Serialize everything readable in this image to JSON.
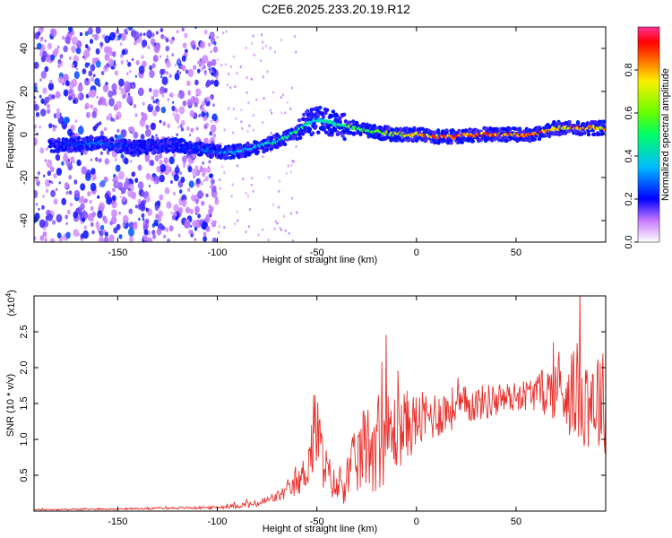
{
  "title": "C2E6.2025.233.20.19.R12",
  "chart_data": [
    {
      "type": "heatmap",
      "name": "spectrogram",
      "xlabel": "Height of straight line (km)",
      "ylabel": "Frequency (Hz)",
      "xlim": [
        -192,
        95
      ],
      "ylim": [
        -50,
        50
      ],
      "xticks": [
        {
          "value": -150,
          "label": "-150"
        },
        {
          "value": -100,
          "label": "-100"
        },
        {
          "value": -50,
          "label": "-50"
        },
        {
          "value": 0,
          "label": "0"
        },
        {
          "value": 50,
          "label": "50"
        }
      ],
      "yticks": [
        {
          "value": 40,
          "label": "40"
        },
        {
          "value": 20,
          "label": "20"
        },
        {
          "value": 0,
          "label": "0"
        },
        {
          "value": -20,
          "label": "-20"
        },
        {
          "value": -40,
          "label": "-40"
        }
      ],
      "ridge": {
        "x": [
          -180,
          -160,
          -140,
          -120,
          -100,
          -90,
          -80,
          -70,
          -60,
          -55,
          -50,
          -45,
          -40,
          -30,
          -20,
          -10,
          0,
          10,
          20,
          30,
          40,
          50,
          60,
          70,
          80,
          95
        ],
        "frequency": [
          -5,
          -4,
          -6,
          -5,
          -8,
          -8,
          -6,
          -3,
          1,
          5,
          7,
          6,
          4,
          3,
          1,
          0,
          0,
          -1,
          -1,
          0,
          0,
          0,
          0,
          3,
          3,
          3
        ],
        "amplitude": [
          0.2,
          0.3,
          0.2,
          0.2,
          0.3,
          0.35,
          0.4,
          0.45,
          0.5,
          0.45,
          0.4,
          0.45,
          0.5,
          0.55,
          0.6,
          0.7,
          0.8,
          0.85,
          0.85,
          0.85,
          0.9,
          0.9,
          0.9,
          0.8,
          0.85,
          0.8
        ]
      },
      "noise_region_x": [
        -192,
        -100
      ],
      "colorbar": {
        "label": "Normalized spectral amplitude",
        "range": [
          0,
          1
        ],
        "ticks": [
          {
            "value": 0.0,
            "label": "0.0"
          },
          {
            "value": 0.2,
            "label": "0.2"
          },
          {
            "value": 0.4,
            "label": "0.4"
          },
          {
            "value": 0.6,
            "label": "0.6"
          },
          {
            "value": 0.8,
            "label": "0.8"
          }
        ]
      }
    },
    {
      "type": "line",
      "name": "snr",
      "xlabel": "Height of straight line (km)",
      "ylabel": "SNR (10 * v/v)",
      "y_multiplier": "(x10",
      "y_multiplier_exp": "4",
      "y_multiplier_close": ")",
      "xlim": [
        -192,
        95
      ],
      "ylim": [
        0,
        3.0
      ],
      "color": "#e8322e",
      "xticks": [
        {
          "value": -150,
          "label": "-150"
        },
        {
          "value": -100,
          "label": "-100"
        },
        {
          "value": -50,
          "label": "-50"
        },
        {
          "value": 0,
          "label": "0"
        },
        {
          "value": 50,
          "label": "50"
        }
      ],
      "yticks": [
        {
          "value": 0.5,
          "label": "0.5"
        },
        {
          "value": 1.0,
          "label": "1.0"
        },
        {
          "value": 1.5,
          "label": "1.5"
        },
        {
          "value": 2.0,
          "label": "2.0"
        },
        {
          "value": 2.5,
          "label": "2.5"
        }
      ],
      "series": [
        {
          "name": "SNR",
          "x": [
            -192,
            -150,
            -100,
            -80,
            -70,
            -60,
            -55,
            -52,
            -50,
            -48,
            -45,
            -40,
            -35,
            -30,
            -25,
            -20,
            -15,
            -10,
            -5,
            0,
            10,
            20,
            30,
            40,
            50,
            60,
            70,
            80,
            90,
            95
          ],
          "y": [
            0.02,
            0.03,
            0.05,
            0.1,
            0.2,
            0.35,
            0.6,
            1.0,
            1.2,
            0.8,
            0.55,
            0.3,
            0.45,
            0.7,
            0.9,
            1.0,
            1.05,
            1.1,
            1.2,
            1.25,
            1.35,
            1.45,
            1.5,
            1.55,
            1.6,
            1.65,
            1.7,
            1.65,
            1.6,
            1.5
          ],
          "spread": [
            0.01,
            0.01,
            0.02,
            0.05,
            0.08,
            0.15,
            0.3,
            0.6,
            0.7,
            0.45,
            0.3,
            0.2,
            0.35,
            0.5,
            0.6,
            0.75,
            0.65,
            0.55,
            0.5,
            0.4,
            0.35,
            0.3,
            0.25,
            0.25,
            0.2,
            0.25,
            0.45,
            0.7,
            0.8,
            0.7
          ]
        }
      ]
    }
  ]
}
